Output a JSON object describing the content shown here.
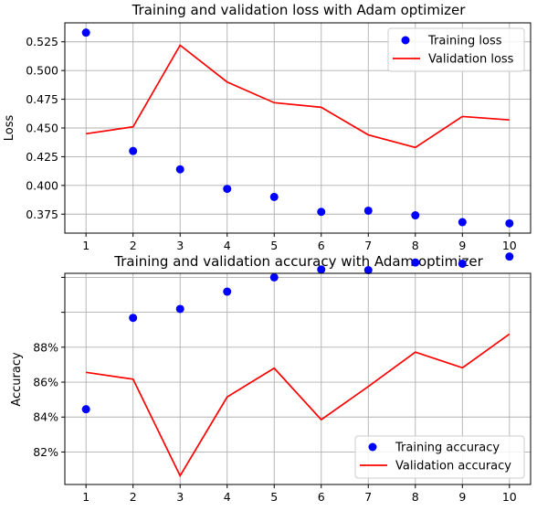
{
  "colors": {
    "training": "#0000ff",
    "validation": "#ff0000",
    "grid": "#b0b0b0",
    "axis": "#000000"
  },
  "chart_data": [
    {
      "type": "scatter+line",
      "title": "Training and validation loss with Adam optimizer",
      "xlabel": "",
      "ylabel": "Loss",
      "x": [
        1,
        2,
        3,
        4,
        5,
        6,
        7,
        8,
        9,
        10
      ],
      "xticks": [
        "1",
        "2",
        "3",
        "4",
        "5",
        "6",
        "7",
        "8",
        "9",
        "10"
      ],
      "xlim": [
        0.55,
        10.45
      ],
      "ylim": [
        0.3585,
        0.5415
      ],
      "yticks": [
        0.375,
        0.4,
        0.425,
        0.45,
        0.475,
        0.5,
        0.525
      ],
      "ytick_labels": [
        "0.375",
        "0.400",
        "0.425",
        "0.450",
        "0.475",
        "0.500",
        "0.525"
      ],
      "grid": true,
      "legend_position": "top-right",
      "series": [
        {
          "name": "Training loss",
          "style": "markers",
          "color": "#0000ff",
          "values": [
            0.533,
            0.43,
            0.414,
            0.397,
            0.39,
            0.377,
            0.378,
            0.374,
            0.368,
            0.367
          ]
        },
        {
          "name": "Validation loss",
          "style": "line",
          "color": "#ff0000",
          "values": [
            0.445,
            0.451,
            0.522,
            0.49,
            0.472,
            0.468,
            0.444,
            0.433,
            0.46,
            0.457
          ]
        }
      ]
    },
    {
      "type": "scatter+line",
      "title": "Training and validation accuracy with Adam optimizer",
      "xlabel": "",
      "ylabel": "Accuracy",
      "x": [
        1,
        2,
        3,
        4,
        5,
        6,
        7,
        8,
        9,
        10
      ],
      "xticks": [
        "1",
        "2",
        "3",
        "4",
        "5",
        "6",
        "7",
        "8",
        "9",
        "10"
      ],
      "xlim": [
        0.55,
        10.45
      ],
      "ylim": [
        0.8014,
        0.9223
      ],
      "yticks": [
        0.82,
        0.84,
        0.86,
        0.88,
        0.9,
        0.92
      ],
      "ytick_labels": [
        "82%",
        "84%",
        "86%",
        "88%",
        "",
        ""
      ],
      "grid": true,
      "legend_position": "bottom-right",
      "series": [
        {
          "name": "Training accuracy",
          "style": "markers",
          "color": "#0000ff",
          "values": [
            0.8445,
            0.8968,
            0.9019,
            0.9118,
            0.92,
            0.9245,
            0.9241,
            0.9285,
            0.9278,
            0.9319
          ]
        },
        {
          "name": "Validation accuracy",
          "style": "line",
          "color": "#ff0000",
          "values": [
            0.8656,
            0.8617,
            0.8064,
            0.8515,
            0.868,
            0.8385,
            0.8575,
            0.8772,
            0.8682,
            0.8875
          ]
        }
      ]
    }
  ]
}
